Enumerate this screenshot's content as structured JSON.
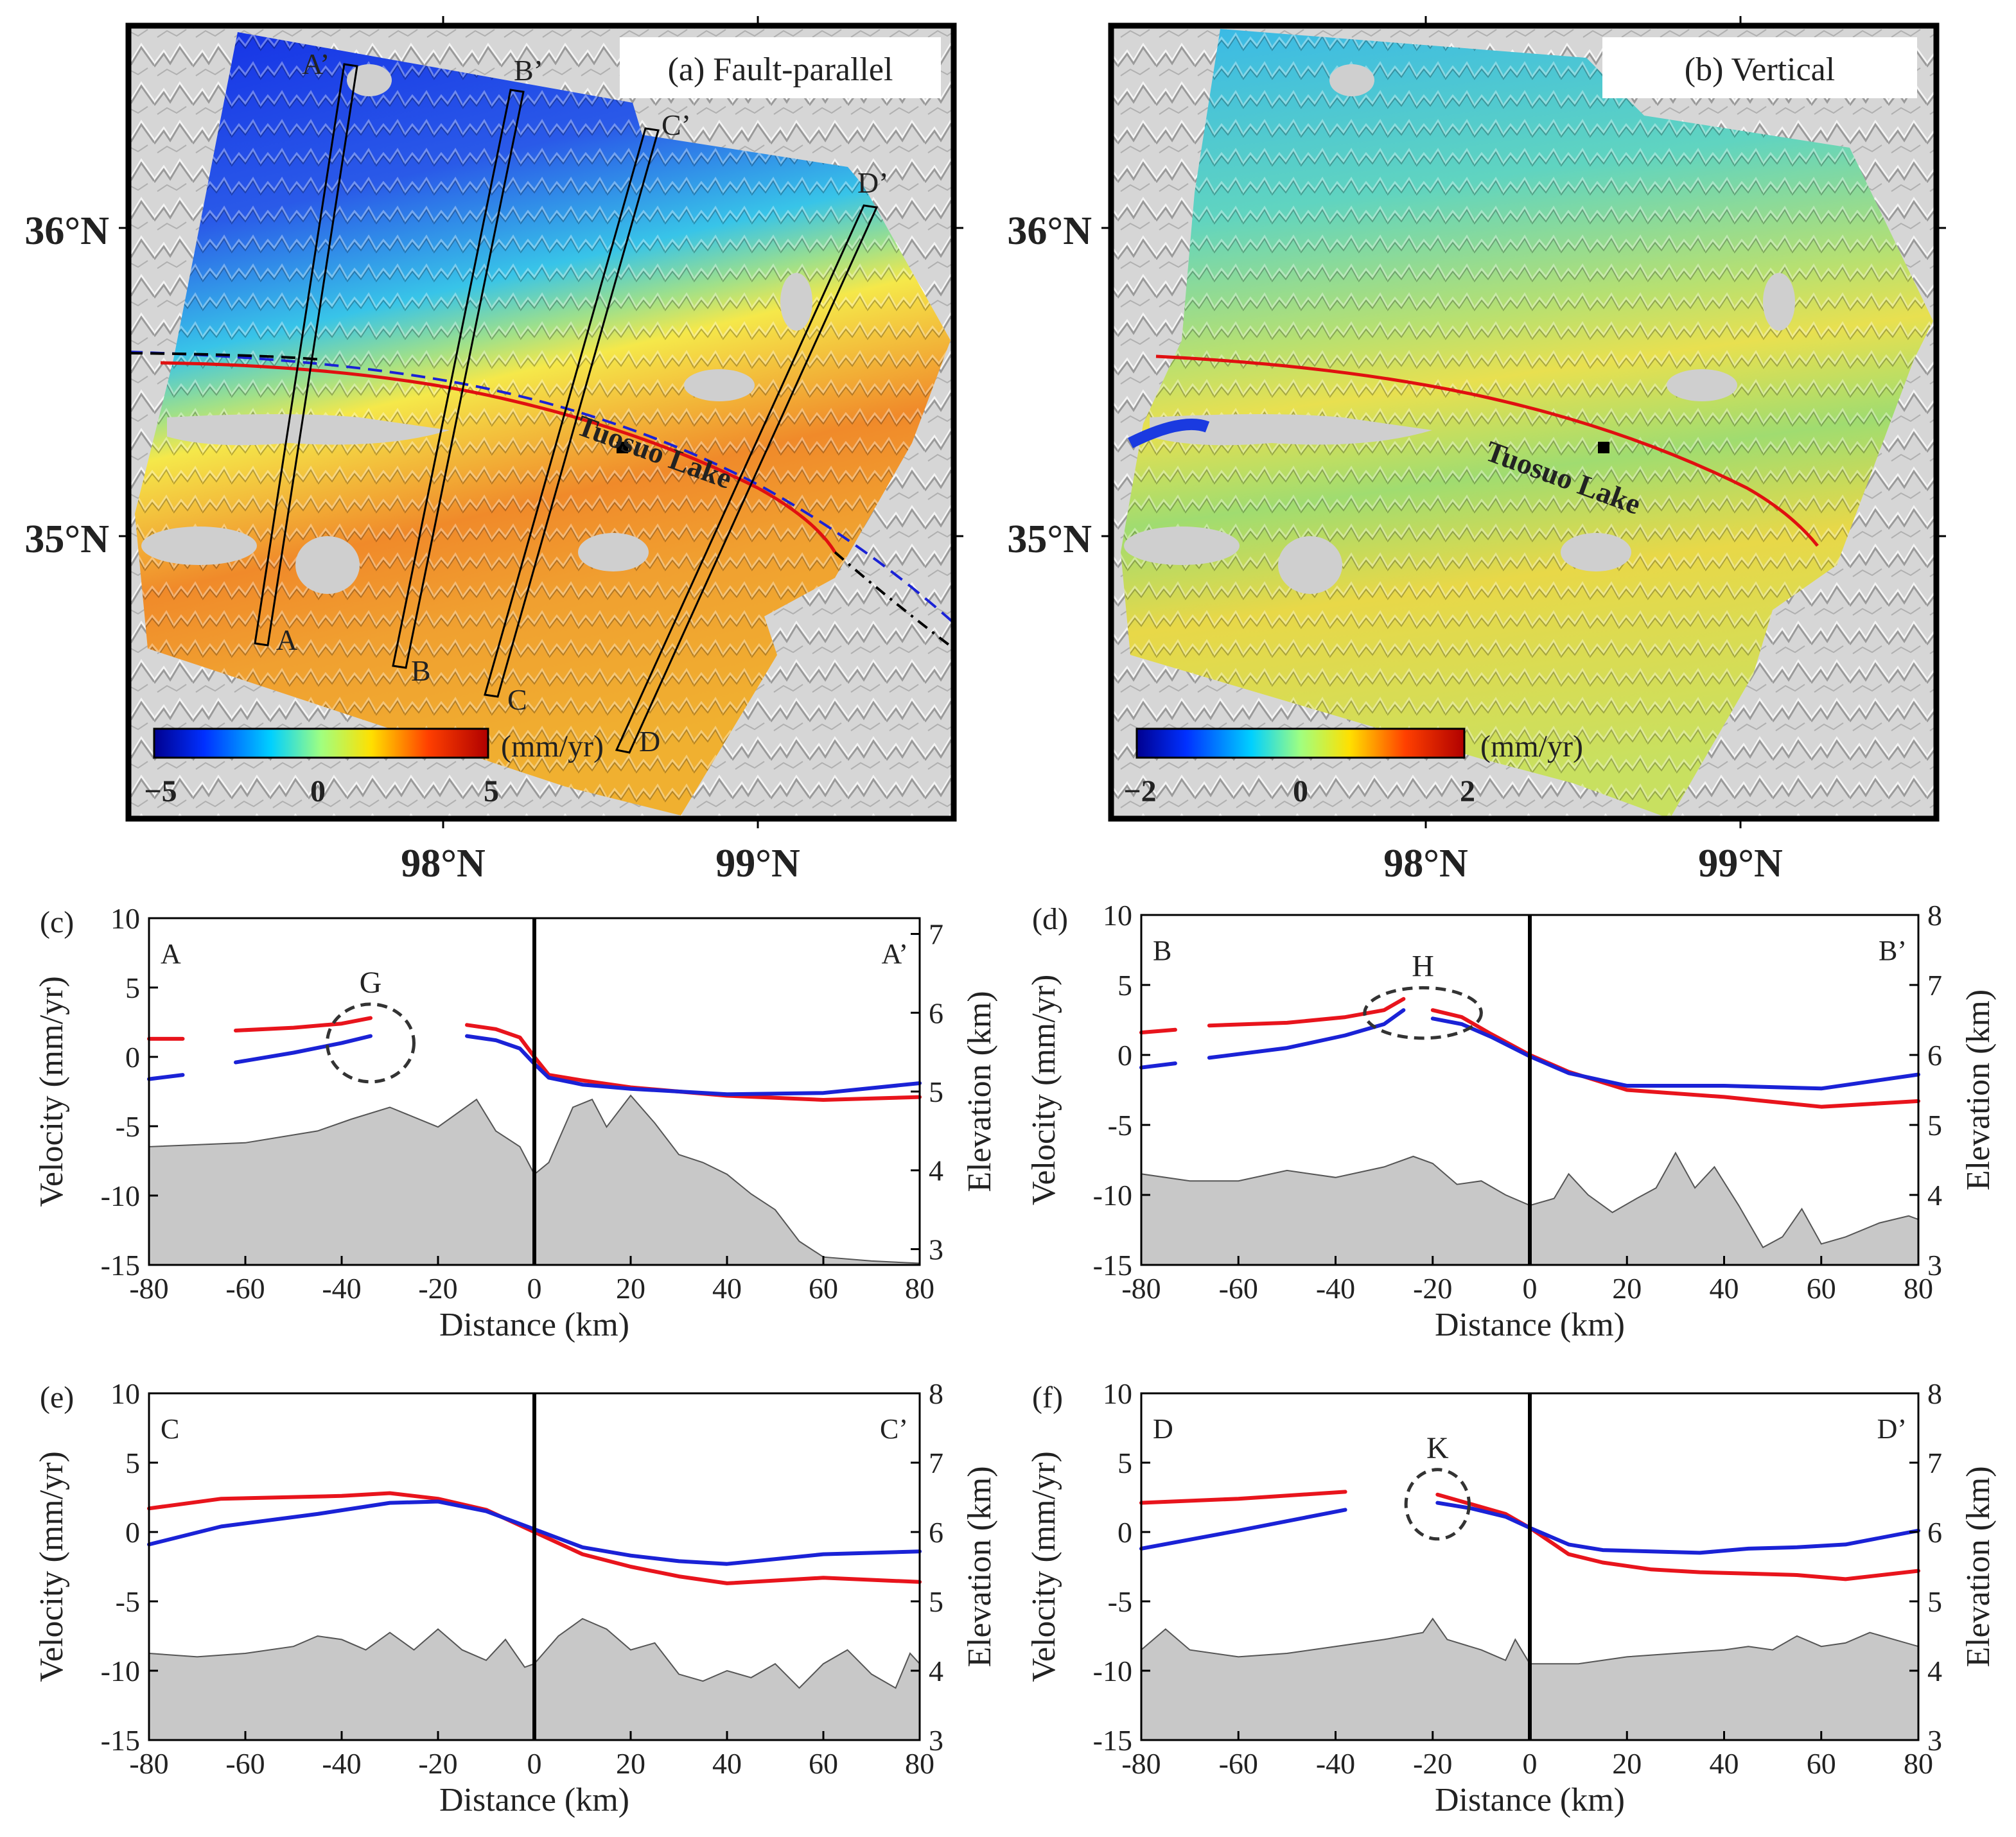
{
  "maps": [
    {
      "id": "a",
      "title": "(a) Fault-parallel",
      "lat_labels": [
        "36°N",
        "35°N"
      ],
      "lon_labels": [
        "98°N",
        "99°N"
      ],
      "colorbar": {
        "unit": "(mm/yr)",
        "min_label": "−5",
        "mid_label": "0",
        "max_label": "5",
        "min": -5,
        "max": 5
      },
      "lake_label": "Tuosuo Lake",
      "profile_start_labels": [
        "A",
        "B",
        "C",
        "D"
      ],
      "profile_end_labels": [
        "A’",
        "B’",
        "C’",
        "D’"
      ]
    },
    {
      "id": "b",
      "title": "(b) Vertical",
      "lat_labels": [
        "36°N",
        "35°N"
      ],
      "lon_labels": [
        "98°N",
        "99°N"
      ],
      "colorbar": {
        "unit": "(mm/yr)",
        "min_label": "−2",
        "mid_label": "0",
        "max_label": "2",
        "min": -2,
        "max": 2
      },
      "lake_label": "Tuosuo Lake"
    }
  ],
  "colors": {
    "series_red": "#e8141c",
    "series_blue": "#1a22d6",
    "elevation_fill": "#c8c8c8",
    "fault": "#e01010"
  },
  "chart_data": [
    {
      "type": "line",
      "panel": "(c)",
      "start_label": "A",
      "end_label": "A’",
      "circle_label": "G",
      "xlabel": "Distance (km)",
      "ylabel": "Velocity (mm/yr)",
      "y2label": "Elevation (km)",
      "xlim": [
        -80,
        80
      ],
      "ylim": [
        -15,
        10
      ],
      "y2lim": [
        2.8,
        7.2
      ],
      "xticks": [
        "-80",
        "-60",
        "-40",
        "-20",
        "0",
        "20",
        "40",
        "60",
        "80"
      ],
      "yticks": [
        "10",
        "5",
        "0",
        "-5",
        "-10",
        "-15"
      ],
      "y2ticks": [
        "7",
        "6",
        "5",
        "4",
        "3"
      ],
      "series": [
        {
          "name": "red",
          "segments": [
            [
              [
                -80,
                1.3
              ],
              [
                -73,
                1.3
              ]
            ],
            [
              [
                -62,
                1.9
              ],
              [
                -50,
                2.1
              ],
              [
                -40,
                2.4
              ],
              [
                -34,
                2.8
              ]
            ],
            [
              [
                -14,
                2.3
              ],
              [
                -8,
                2.0
              ],
              [
                -3,
                1.4
              ],
              [
                0,
                0
              ],
              [
                3,
                -1.3
              ],
              [
                10,
                -1.7
              ],
              [
                20,
                -2.2
              ],
              [
                40,
                -2.8
              ],
              [
                60,
                -3.1
              ],
              [
                80,
                -2.9
              ]
            ]
          ]
        },
        {
          "name": "blue",
          "segments": [
            [
              [
                -80,
                -1.6
              ],
              [
                -73,
                -1.3
              ]
            ],
            [
              [
                -62,
                -0.4
              ],
              [
                -50,
                0.3
              ],
              [
                -40,
                1.0
              ],
              [
                -34,
                1.5
              ]
            ],
            [
              [
                -14,
                1.5
              ],
              [
                -8,
                1.2
              ],
              [
                -3,
                0.6
              ],
              [
                0,
                -0.5
              ],
              [
                3,
                -1.5
              ],
              [
                10,
                -2.0
              ],
              [
                20,
                -2.3
              ],
              [
                40,
                -2.7
              ],
              [
                60,
                -2.6
              ],
              [
                80,
                -1.9
              ]
            ]
          ]
        }
      ],
      "elevation": [
        [
          -80,
          4.3
        ],
        [
          -60,
          4.35
        ],
        [
          -45,
          4.5
        ],
        [
          -38,
          4.65
        ],
        [
          -30,
          4.8
        ],
        [
          -20,
          4.55
        ],
        [
          -12,
          4.9
        ],
        [
          -8,
          4.5
        ],
        [
          -3,
          4.3
        ],
        [
          0,
          3.95
        ],
        [
          3,
          4.1
        ],
        [
          8,
          4.8
        ],
        [
          12,
          4.9
        ],
        [
          15,
          4.55
        ],
        [
          20,
          4.95
        ],
        [
          25,
          4.6
        ],
        [
          30,
          4.2
        ],
        [
          35,
          4.1
        ],
        [
          40,
          3.95
        ],
        [
          45,
          3.7
        ],
        [
          50,
          3.5
        ],
        [
          55,
          3.1
        ],
        [
          60,
          2.9
        ],
        [
          70,
          2.85
        ],
        [
          80,
          2.82
        ]
      ]
    },
    {
      "type": "line",
      "panel": "(d)",
      "start_label": "B",
      "end_label": "B’",
      "circle_label": "H",
      "xlabel": "Distance (km)",
      "ylabel": "Velocity (mm/yr)",
      "y2label": "Elevation (km)",
      "xlim": [
        -80,
        80
      ],
      "ylim": [
        -15,
        10
      ],
      "y2lim": [
        3,
        8
      ],
      "xticks": [
        "-80",
        "-60",
        "-40",
        "-20",
        "0",
        "20",
        "40",
        "60",
        "80"
      ],
      "yticks": [
        "10",
        "5",
        "0",
        "-5",
        "-10",
        "-15"
      ],
      "y2ticks": [
        "8",
        "7",
        "6",
        "5",
        "4",
        "3"
      ],
      "series": [
        {
          "name": "red",
          "segments": [
            [
              [
                -80,
                1.6
              ],
              [
                -73,
                1.8
              ]
            ],
            [
              [
                -66,
                2.1
              ],
              [
                -50,
                2.3
              ],
              [
                -38,
                2.7
              ],
              [
                -30,
                3.2
              ],
              [
                -26,
                4.0
              ]
            ],
            [
              [
                -20,
                3.2
              ],
              [
                -14,
                2.7
              ],
              [
                -8,
                1.5
              ],
              [
                0,
                0
              ],
              [
                8,
                -1.2
              ],
              [
                20,
                -2.5
              ],
              [
                40,
                -3.0
              ],
              [
                60,
                -3.7
              ],
              [
                80,
                -3.3
              ]
            ]
          ]
        },
        {
          "name": "blue",
          "segments": [
            [
              [
                -80,
                -0.9
              ],
              [
                -73,
                -0.6
              ]
            ],
            [
              [
                -66,
                -0.2
              ],
              [
                -50,
                0.5
              ],
              [
                -38,
                1.4
              ],
              [
                -30,
                2.2
              ],
              [
                -26,
                3.2
              ]
            ],
            [
              [
                -20,
                2.6
              ],
              [
                -14,
                2.2
              ],
              [
                -8,
                1.3
              ],
              [
                0,
                -0.1
              ],
              [
                8,
                -1.3
              ],
              [
                20,
                -2.2
              ],
              [
                40,
                -2.2
              ],
              [
                60,
                -2.4
              ],
              [
                80,
                -1.4
              ]
            ]
          ]
        }
      ],
      "elevation": [
        [
          -80,
          4.3
        ],
        [
          -70,
          4.2
        ],
        [
          -60,
          4.2
        ],
        [
          -50,
          4.35
        ],
        [
          -40,
          4.25
        ],
        [
          -30,
          4.4
        ],
        [
          -24,
          4.55
        ],
        [
          -20,
          4.45
        ],
        [
          -15,
          4.15
        ],
        [
          -10,
          4.2
        ],
        [
          -5,
          4.0
        ],
        [
          0,
          3.85
        ],
        [
          5,
          3.95
        ],
        [
          8,
          4.3
        ],
        [
          12,
          4.0
        ],
        [
          17,
          3.75
        ],
        [
          22,
          3.95
        ],
        [
          26,
          4.1
        ],
        [
          30,
          4.6
        ],
        [
          34,
          4.1
        ],
        [
          38,
          4.4
        ],
        [
          43,
          3.85
        ],
        [
          48,
          3.25
        ],
        [
          52,
          3.4
        ],
        [
          56,
          3.8
        ],
        [
          60,
          3.3
        ],
        [
          65,
          3.4
        ],
        [
          72,
          3.6
        ],
        [
          78,
          3.7
        ],
        [
          80,
          3.65
        ]
      ]
    },
    {
      "type": "line",
      "panel": "(e)",
      "start_label": "C",
      "end_label": "C’",
      "circle_label": "",
      "xlabel": "Distance (km)",
      "ylabel": "Velocity (mm/yr)",
      "y2label": "Elevation (km)",
      "xlim": [
        -80,
        80
      ],
      "ylim": [
        -15,
        10
      ],
      "y2lim": [
        3,
        8
      ],
      "xticks": [
        "-80",
        "-60",
        "-40",
        "-20",
        "0",
        "20",
        "40",
        "60",
        "80"
      ],
      "yticks": [
        "10",
        "5",
        "0",
        "-5",
        "-10",
        "-15"
      ],
      "y2ticks": [
        "8",
        "7",
        "6",
        "5",
        "4",
        "3"
      ],
      "series": [
        {
          "name": "red",
          "segments": [
            [
              [
                -80,
                1.7
              ],
              [
                -65,
                2.4
              ],
              [
                -40,
                2.6
              ],
              [
                -30,
                2.8
              ],
              [
                -20,
                2.4
              ],
              [
                -10,
                1.6
              ],
              [
                0,
                0
              ],
              [
                10,
                -1.6
              ],
              [
                20,
                -2.5
              ],
              [
                30,
                -3.2
              ],
              [
                40,
                -3.7
              ],
              [
                60,
                -3.3
              ],
              [
                80,
                -3.6
              ]
            ]
          ]
        },
        {
          "name": "blue",
          "segments": [
            [
              [
                -80,
                -0.9
              ],
              [
                -65,
                0.4
              ],
              [
                -45,
                1.3
              ],
              [
                -30,
                2.1
              ],
              [
                -20,
                2.2
              ],
              [
                -10,
                1.5
              ],
              [
                0,
                0.2
              ],
              [
                10,
                -1.1
              ],
              [
                20,
                -1.7
              ],
              [
                30,
                -2.1
              ],
              [
                40,
                -2.3
              ],
              [
                60,
                -1.6
              ],
              [
                80,
                -1.4
              ]
            ]
          ]
        }
      ],
      "elevation": [
        [
          -80,
          4.25
        ],
        [
          -70,
          4.2
        ],
        [
          -60,
          4.25
        ],
        [
          -50,
          4.35
        ],
        [
          -45,
          4.5
        ],
        [
          -40,
          4.45
        ],
        [
          -35,
          4.3
        ],
        [
          -30,
          4.55
        ],
        [
          -25,
          4.3
        ],
        [
          -20,
          4.6
        ],
        [
          -15,
          4.3
        ],
        [
          -10,
          4.15
        ],
        [
          -6,
          4.45
        ],
        [
          -2,
          4.05
        ],
        [
          0,
          4.1
        ],
        [
          5,
          4.5
        ],
        [
          10,
          4.75
        ],
        [
          15,
          4.6
        ],
        [
          20,
          4.3
        ],
        [
          25,
          4.4
        ],
        [
          30,
          3.95
        ],
        [
          35,
          3.85
        ],
        [
          40,
          4.0
        ],
        [
          45,
          3.9
        ],
        [
          50,
          4.1
        ],
        [
          55,
          3.75
        ],
        [
          60,
          4.1
        ],
        [
          65,
          4.3
        ],
        [
          70,
          3.95
        ],
        [
          75,
          3.75
        ],
        [
          78,
          4.25
        ],
        [
          80,
          4.1
        ]
      ]
    },
    {
      "type": "line",
      "panel": "(f)",
      "start_label": "D",
      "end_label": "D’",
      "circle_label": "K",
      "xlabel": "Distance (km)",
      "ylabel": "Velocity (mm/yr)",
      "y2label": "Elevation (km)",
      "xlim": [
        -80,
        80
      ],
      "ylim": [
        -15,
        10
      ],
      "y2lim": [
        3,
        8
      ],
      "xticks": [
        "-80",
        "-60",
        "-40",
        "-20",
        "0",
        "20",
        "40",
        "60",
        "80"
      ],
      "yticks": [
        "10",
        "5",
        "0",
        "-5",
        "-10",
        "-15"
      ],
      "y2ticks": [
        "8",
        "7",
        "6",
        "5",
        "4",
        "3"
      ],
      "series": [
        {
          "name": "red",
          "segments": [
            [
              [
                -80,
                2.1
              ],
              [
                -60,
                2.4
              ],
              [
                -38,
                2.9
              ]
            ],
            [
              [
                -19,
                2.7
              ],
              [
                -12,
                2.0
              ],
              [
                -5,
                1.3
              ],
              [
                0,
                0.3
              ],
              [
                8,
                -1.6
              ],
              [
                15,
                -2.2
              ],
              [
                25,
                -2.7
              ],
              [
                35,
                -2.9
              ],
              [
                45,
                -3.0
              ],
              [
                55,
                -3.1
              ],
              [
                65,
                -3.4
              ],
              [
                80,
                -2.8
              ]
            ]
          ]
        },
        {
          "name": "blue",
          "segments": [
            [
              [
                -80,
                -1.2
              ],
              [
                -60,
                0.1
              ],
              [
                -38,
                1.6
              ]
            ],
            [
              [
                -19,
                2.1
              ],
              [
                -12,
                1.7
              ],
              [
                -5,
                1.1
              ],
              [
                0,
                0.3
              ],
              [
                8,
                -0.9
              ],
              [
                15,
                -1.3
              ],
              [
                25,
                -1.4
              ],
              [
                35,
                -1.5
              ],
              [
                45,
                -1.2
              ],
              [
                55,
                -1.1
              ],
              [
                65,
                -0.9
              ],
              [
                80,
                0.1
              ]
            ]
          ]
        }
      ],
      "elevation": [
        [
          -80,
          4.3
        ],
        [
          -75,
          4.6
        ],
        [
          -70,
          4.3
        ],
        [
          -60,
          4.2
        ],
        [
          -50,
          4.25
        ],
        [
          -40,
          4.35
        ],
        [
          -30,
          4.45
        ],
        [
          -22,
          4.55
        ],
        [
          -20,
          4.75
        ],
        [
          -17,
          4.45
        ],
        [
          -10,
          4.3
        ],
        [
          -5,
          4.15
        ],
        [
          -3,
          4.45
        ],
        [
          0,
          4.1
        ],
        [
          10,
          4.1
        ],
        [
          20,
          4.2
        ],
        [
          30,
          4.25
        ],
        [
          40,
          4.3
        ],
        [
          45,
          4.35
        ],
        [
          50,
          4.3
        ],
        [
          55,
          4.5
        ],
        [
          60,
          4.35
        ],
        [
          65,
          4.4
        ],
        [
          70,
          4.55
        ],
        [
          75,
          4.45
        ],
        [
          80,
          4.35
        ]
      ]
    }
  ]
}
